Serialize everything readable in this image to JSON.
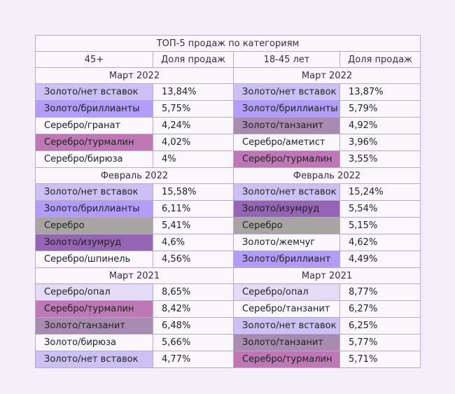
{
  "title": "ТОП-5 продаж по категориям",
  "col_headers": {
    "left_group": "45+",
    "left_share": "Доля продаж",
    "right_group": "18-45 лет",
    "right_share": "Доля продаж"
  },
  "colors": {
    "none": "#faf7fc",
    "light": "#e4dcf6",
    "lavender": "#cbc1f4",
    "violet": "#b19cf7",
    "gray": "#a7a4a2",
    "pink": "#be78b5",
    "mauve": "#a78bb0",
    "purple": "#9565b3"
  },
  "sections": [
    {
      "left_period": "Март 2022",
      "right_period": "Март 2022",
      "rows": [
        {
          "l_name": "Золото/нет вставок",
          "l_val": "13,84%",
          "l_color": "lavender",
          "r_name": "Золото/нет вставок",
          "r_val": "13,87%",
          "r_color": "lavender"
        },
        {
          "l_name": "Золото/бриллианты",
          "l_val": "5,75%",
          "l_color": "violet",
          "r_name": "Золото/бриллианты",
          "r_val": "5,79%",
          "r_color": "violet"
        },
        {
          "l_name": "Серебро/гранат",
          "l_val": "4,24%",
          "l_color": "none",
          "r_name": "Золото/танзанит",
          "r_val": "4,92%",
          "r_color": "mauve"
        },
        {
          "l_name": "Серебро/турмалин",
          "l_val": "4,02%",
          "l_color": "pink",
          "r_name": "Серебро/аметист",
          "r_val": "3,96%",
          "r_color": "none"
        },
        {
          "l_name": "Серебро/бирюза",
          "l_val": "4%",
          "l_color": "none",
          "r_name": "Серебро/турмалин",
          "r_val": "3,55%",
          "r_color": "pink"
        }
      ]
    },
    {
      "left_period": "Февраль 2022",
      "right_period": "Февраль 2022",
      "rows": [
        {
          "l_name": "Золото/нет вставок",
          "l_val": "15,58%",
          "l_color": "lavender",
          "r_name": "Золото/нет вставок",
          "r_val": "15,24%",
          "r_color": "lavender"
        },
        {
          "l_name": "Золото/бриллианты",
          "l_val": "6,11%",
          "l_color": "violet",
          "r_name": "Золото/изумруд",
          "r_val": "5,54%",
          "r_color": "purple"
        },
        {
          "l_name": "Серебро",
          "l_val": "5,41%",
          "l_color": "gray",
          "r_name": "Серебро",
          "r_val": "5,15%",
          "r_color": "gray"
        },
        {
          "l_name": "Золото/изумруд",
          "l_val": "4,6%",
          "l_color": "purple",
          "r_name": "Золото/жемчуг",
          "r_val": "4,62%",
          "r_color": "none"
        },
        {
          "l_name": "Серебро/шпинель",
          "l_val": "4,56%",
          "l_color": "none",
          "r_name": "Золото/бриллиант",
          "r_val": "4,49%",
          "r_color": "violet"
        }
      ]
    },
    {
      "left_period": "Март 2021",
      "right_period": "Март 2021",
      "rows": [
        {
          "l_name": "Серебро/опал",
          "l_val": "8,65%",
          "l_color": "light",
          "r_name": "Серебро/опал",
          "r_val": "8,77%",
          "r_color": "light"
        },
        {
          "l_name": "Серебро/турмалин",
          "l_val": "8,42%",
          "l_color": "pink",
          "r_name": "Серебро/танзанит",
          "r_val": "6,27%",
          "r_color": "none"
        },
        {
          "l_name": "Золото/танзанит",
          "l_val": "6,48%",
          "l_color": "mauve",
          "r_name": "Золото/нет вставок",
          "r_val": "6,25%",
          "r_color": "lavender"
        },
        {
          "l_name": "Золото/бирюза",
          "l_val": "5,66%",
          "l_color": "none",
          "r_name": "Золото/танзанит",
          "r_val": "5,77%",
          "r_color": "mauve"
        },
        {
          "l_name": "Золото/нет вставок",
          "l_val": "4,77%",
          "l_color": "lavender",
          "r_name": "Серебро/турмалин",
          "r_val": "5,71%",
          "r_color": "pink"
        }
      ]
    }
  ]
}
